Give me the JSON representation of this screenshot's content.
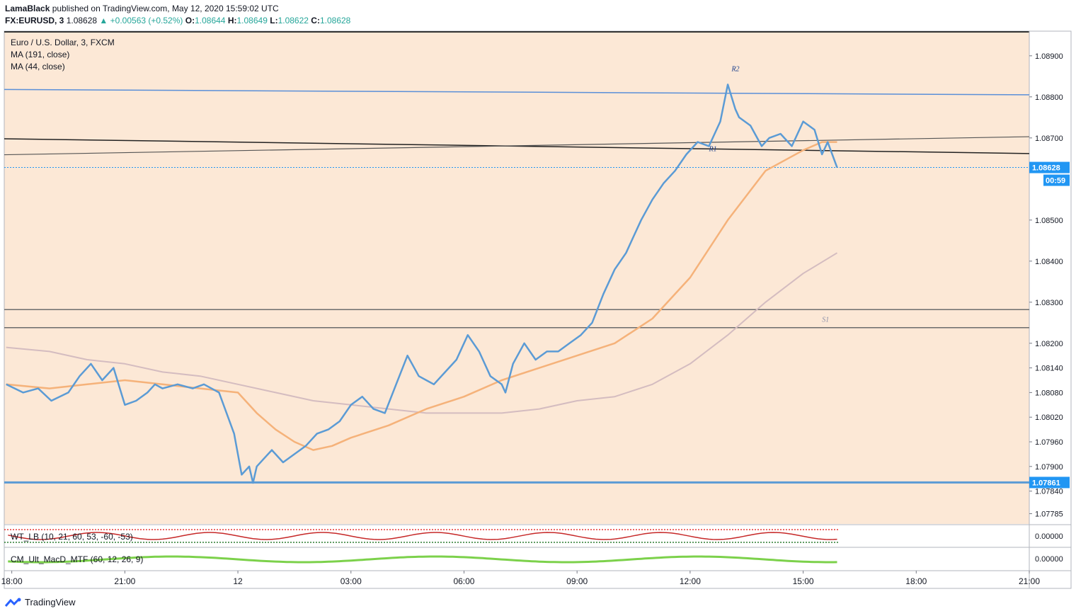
{
  "header": {
    "publisher": "LamaBlack",
    "published_text": "published on TradingView.com, May 12, 2020 15:59:02 UTC",
    "symbol": "FX:EURUSD, 3",
    "last": "1.08628",
    "change": "+0.00563 (+0.52%)",
    "o_label": "O:",
    "o": "1.08644",
    "h_label": "H:",
    "h": "1.08649",
    "l_label": "L:",
    "l": "1.08622",
    "c_label": "C:",
    "c": "1.08628"
  },
  "legend": {
    "title": "Euro / U.S. Dollar, 3, FXCM",
    "ma1": "MA (191, close)",
    "ma2": "MA (44, close)"
  },
  "indicators": {
    "wt": "WT_LB (10, 21, 60, 53, -60, -53)",
    "macd": "CM_Ult_MacD_MTF (60, 12, 26, 9)",
    "zero_label": "0.00000"
  },
  "brand": "TradingView",
  "colors": {
    "background": "#fce8d6",
    "price": "#5b9bd5",
    "ma44": "#f5b27a",
    "ma191": "#d4bcc0",
    "r2_line": "#5a8fd8",
    "price_badge": "#2196f3"
  },
  "chart_data": {
    "type": "line",
    "title": "Euro / U.S. Dollar, 3, FXCM",
    "y_ticks": [
      "1.08900",
      "1.08800",
      "1.08700",
      "1.08628",
      "1.08500",
      "1.08400",
      "1.08300",
      "1.08200",
      "1.08140",
      "1.08080",
      "1.08020",
      "1.07960",
      "1.07900",
      "1.07861",
      "1.07840",
      "1.07785"
    ],
    "x_ticks": [
      "18:00",
      "21:00",
      "12",
      "03:00",
      "06:00",
      "09:00",
      "12:00",
      "15:00",
      "18:00",
      "21:00"
    ],
    "current_price": "1.08628",
    "countdown": "00:59",
    "s1_price": "1.07861",
    "line_labels": [
      "R2",
      "R1",
      "S1"
    ],
    "ylim": [
      1.0776,
      1.0896
    ],
    "xlim_hours": [
      -6.2,
      21.0
    ],
    "levels": {
      "R2_start": 1.08818,
      "R2_end": 1.08805,
      "R1a_start": 1.08698,
      "R1a_end": 1.08662,
      "R1b_start": 1.08659,
      "R1b_end": 1.08703,
      "band_top": 1.08282,
      "band_bottom": 1.08238,
      "s1": 1.07861
    },
    "series": [
      {
        "name": "EURUSD",
        "x": [
          -6.15,
          -5.7,
          -5.3,
          -4.95,
          -4.5,
          -4.2,
          -3.9,
          -3.6,
          -3.3,
          -3.0,
          -2.7,
          -2.4,
          -2.2,
          -2.0,
          -1.6,
          -1.2,
          -0.9,
          -0.5,
          -0.1,
          0.1,
          0.3,
          0.4,
          0.5,
          0.7,
          0.9,
          1.2,
          1.5,
          1.8,
          2.1,
          2.4,
          2.7,
          3.0,
          3.3,
          3.6,
          3.9,
          4.2,
          4.5,
          4.8,
          5.0,
          5.2,
          5.5,
          5.8,
          6.1,
          6.4,
          6.7,
          7.0,
          7.1,
          7.3,
          7.6,
          7.9,
          8.2,
          8.5,
          8.8,
          9.1,
          9.4,
          9.7,
          10.0,
          10.3,
          10.5,
          10.7,
          11.0,
          11.3,
          11.6,
          11.9,
          12.2,
          12.5,
          12.8,
          13.0,
          13.2,
          13.3,
          13.6,
          13.9,
          14.1,
          14.4,
          14.7,
          15.0,
          15.3,
          15.5,
          15.65,
          15.9
        ],
        "values": [
          1.081,
          1.0808,
          1.0809,
          1.0806,
          1.0808,
          1.0812,
          1.0815,
          1.0811,
          1.0814,
          1.0805,
          1.0806,
          1.0808,
          1.081,
          1.0809,
          1.081,
          1.0809,
          1.081,
          1.0808,
          1.0798,
          1.0788,
          1.079,
          1.0786,
          1.079,
          1.0792,
          1.0794,
          1.0791,
          1.0793,
          1.0795,
          1.0798,
          1.0799,
          1.0801,
          1.0805,
          1.0807,
          1.0804,
          1.0803,
          1.081,
          1.0817,
          1.0812,
          1.0811,
          1.081,
          1.0813,
          1.0816,
          1.0822,
          1.0818,
          1.0812,
          1.081,
          1.0808,
          1.0815,
          1.082,
          1.0816,
          1.0818,
          1.0818,
          1.082,
          1.0822,
          1.0825,
          1.0832,
          1.0838,
          1.0842,
          1.0846,
          1.085,
          1.0855,
          1.0859,
          1.0862,
          1.0866,
          1.0869,
          1.0868,
          1.0874,
          1.0883,
          1.0877,
          1.0875,
          1.0873,
          1.0868,
          1.087,
          1.0871,
          1.0868,
          1.0874,
          1.0872,
          1.0866,
          1.0869,
          1.08628
        ]
      },
      {
        "name": "MA (44, close)",
        "x": [
          -6.15,
          -5.0,
          -4.0,
          -3.0,
          -2.0,
          -1.0,
          0.0,
          0.5,
          1.0,
          1.5,
          2.0,
          2.5,
          3.0,
          4.0,
          5.0,
          6.0,
          7.0,
          8.0,
          9.0,
          10.0,
          11.0,
          12.0,
          13.0,
          14.0,
          15.0,
          15.5,
          15.9
        ],
        "values": [
          1.081,
          1.0809,
          1.081,
          1.0811,
          1.081,
          1.0809,
          1.0808,
          1.0803,
          1.0799,
          1.0796,
          1.0794,
          1.0795,
          1.0797,
          1.08,
          1.0804,
          1.0807,
          1.0811,
          1.0814,
          1.0817,
          1.082,
          1.0826,
          1.0836,
          1.085,
          1.0862,
          1.0867,
          1.0869,
          1.0869
        ]
      },
      {
        "name": "MA (191, close)",
        "x": [
          -6.15,
          -5.0,
          -4.0,
          -3.0,
          -2.0,
          -1.0,
          0.0,
          1.0,
          2.0,
          3.0,
          4.0,
          5.0,
          6.0,
          7.0,
          8.0,
          9.0,
          10.0,
          11.0,
          12.0,
          13.0,
          14.0,
          15.0,
          15.9
        ],
        "values": [
          1.0819,
          1.0818,
          1.0816,
          1.0815,
          1.0813,
          1.0812,
          1.081,
          1.0808,
          1.0806,
          1.0805,
          1.0804,
          1.0803,
          1.0803,
          1.0803,
          1.0804,
          1.0806,
          1.0807,
          1.081,
          1.0815,
          1.0822,
          1.083,
          1.0837,
          1.0842
        ]
      }
    ]
  }
}
